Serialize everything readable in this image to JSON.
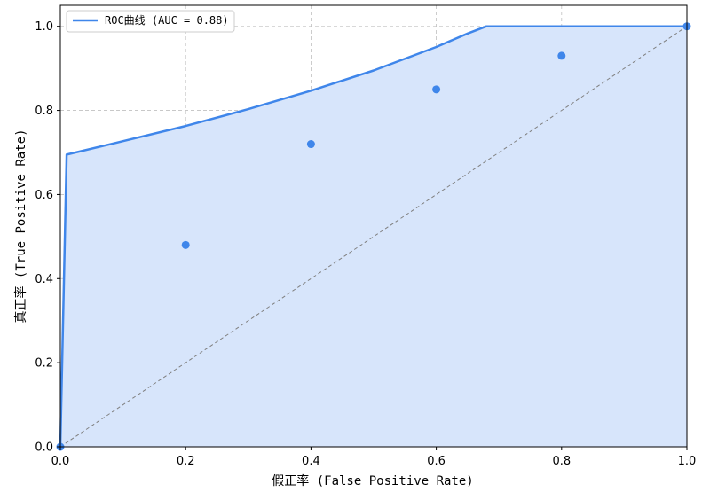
{
  "colors": {
    "roc": "#3f86ea",
    "fill": "#d7e5fb",
    "points": "#3f86ea",
    "diagonal": "#808080",
    "grid": "#c0c0c0"
  },
  "chart_data": {
    "type": "line",
    "title": "",
    "xlabel": "假正率 (False Positive Rate)",
    "ylabel": "真正率 (True Positive Rate)",
    "xlim": [
      0,
      1
    ],
    "ylim": [
      0,
      1.05
    ],
    "xticks": [
      "0.0",
      "0.2",
      "0.4",
      "0.6",
      "0.8",
      "1.0"
    ],
    "yticks": [
      "0.0",
      "0.2",
      "0.4",
      "0.6",
      "0.8",
      "1.0"
    ],
    "grid": true,
    "legend_position": "upper-left",
    "series": [
      {
        "name": "ROC曲线 (AUC = 0.88)",
        "kind": "line",
        "filled": true,
        "x": [
          0,
          0.01,
          0.1,
          0.2,
          0.3,
          0.4,
          0.5,
          0.6,
          0.65,
          0.68,
          0.8,
          1.0
        ],
        "y": [
          0,
          0.695,
          0.727,
          0.763,
          0.803,
          0.847,
          0.895,
          0.951,
          0.983,
          1.0,
          1.0,
          1.0
        ]
      },
      {
        "kind": "scatter",
        "x": [
          0.0,
          0.2,
          0.4,
          0.6,
          0.8,
          1.0
        ],
        "y": [
          0.0,
          0.48,
          0.72,
          0.85,
          0.93,
          1.0
        ]
      },
      {
        "kind": "reference-line",
        "style": "dashed",
        "x": [
          0,
          1
        ],
        "y": [
          0,
          1
        ]
      }
    ]
  }
}
